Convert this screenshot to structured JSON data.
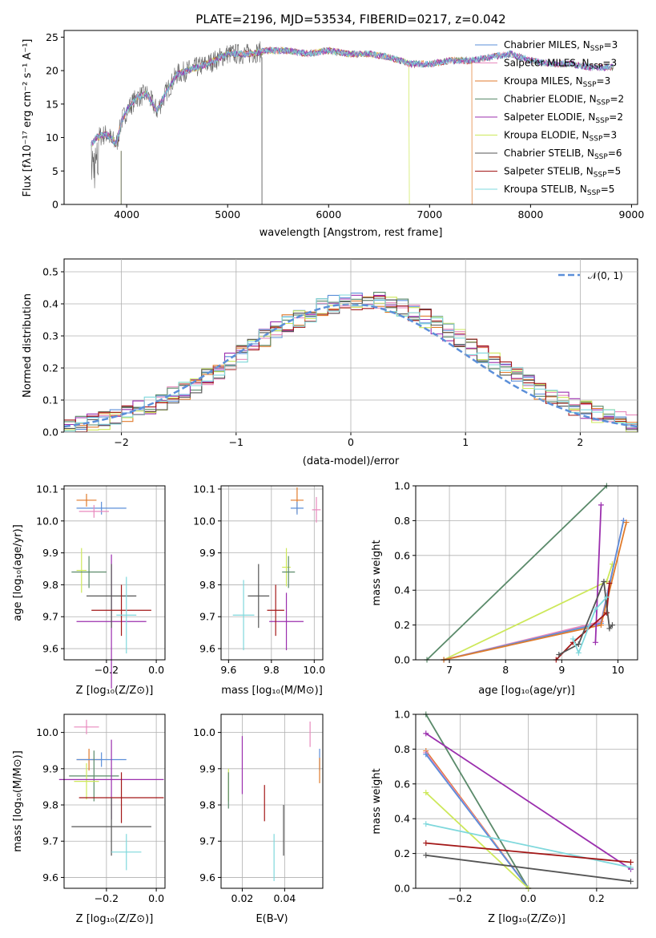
{
  "chart_data": [
    {
      "type": "line",
      "title": "PLATE=2196, MJD=53534, FIBERID=0217, z=0.042",
      "xlabel": "wavelength [Angstrom, rest frame]",
      "ylabel": "Flux [fλ10⁻¹⁷ erg cm⁻² s⁻¹ A⁻¹]",
      "xlim": [
        3380,
        9060
      ],
      "ylim": [
        0,
        26
      ],
      "xticks": [
        4000,
        5000,
        6000,
        7000,
        8000,
        9000
      ],
      "yticks": [
        0,
        5,
        10,
        15,
        20,
        25
      ],
      "legend_loc": "upper right",
      "legend": [
        {
          "label": "Chabrier MILES, N_SSP=3",
          "color": "#5b8fd9"
        },
        {
          "label": "Salpeter MILES, N_SSP=3",
          "color": "#e889bd"
        },
        {
          "label": "Kroupa MILES, N_SSP=3",
          "color": "#e07b2c"
        },
        {
          "label": "Chabrier ELODIE, N_SSP=2",
          "color": "#5a8a6a"
        },
        {
          "label": "Salpeter ELODIE, N_SSP=2",
          "color": "#9b2fae"
        },
        {
          "label": "Kroupa ELODIE, N_SSP=3",
          "color": "#cde85a"
        },
        {
          "label": "Chabrier STELIB, N_SSP=6",
          "color": "#555555"
        },
        {
          "label": "Salpeter STELIB, N_SSP=5",
          "color": "#a31717"
        },
        {
          "label": "Kroupa STELIB, N_SSP=5",
          "color": "#7fd8dc"
        }
      ],
      "spectrum_envelope": {
        "x": [
          3650,
          3700,
          3800,
          3900,
          3950,
          4000,
          4100,
          4200,
          4300,
          4400,
          4500,
          4600,
          4800,
          5000,
          5200,
          5400,
          5600,
          5800,
          6000,
          6200,
          6400,
          6600,
          6800,
          7000,
          7200,
          7400,
          7600,
          7800,
          8000,
          8200,
          8400,
          8600,
          8800
        ],
        "y": [
          9,
          10,
          10.5,
          9,
          12.5,
          14,
          16,
          16.5,
          14,
          17,
          19.5,
          20,
          21,
          22.5,
          22.5,
          23,
          23,
          22.5,
          23,
          22.5,
          22.5,
          22,
          21,
          21,
          21.5,
          21.5,
          22,
          22.5,
          21.5,
          21,
          21,
          20.5,
          20.5
        ]
      },
      "model_cutoffs": [
        {
          "label": "Kroupa ELODIE",
          "x": 6800
        },
        {
          "label": "Kroupa MILES",
          "x": 7420
        },
        {
          "label": "Chabrier STELIB",
          "x": 5340
        }
      ]
    },
    {
      "type": "line",
      "title": "",
      "xlabel": "(data-model)/error",
      "ylabel": "Normed distribution",
      "xlim": [
        -2.5,
        2.5
      ],
      "ylim": [
        0,
        0.54
      ],
      "xticks": [
        -2,
        -1,
        0,
        1,
        2
      ],
      "yticks": [
        0.0,
        0.1,
        0.2,
        0.3,
        0.4,
        0.5
      ],
      "grid": true,
      "legend": [
        {
          "label": "𝒩(0, 1)",
          "color": "#5b8fd9"
        }
      ],
      "legend_loc": "upper right"
    },
    {
      "type": "scatter",
      "xlabel": "Z [log₁₀(Z/Z⊙)]",
      "ylabel": "age  [log₁₀(age/yr)]",
      "xlim": [
        -0.37,
        0.035
      ],
      "ylim": [
        9.565,
        10.11
      ],
      "xticks": [
        -0.2,
        0.0
      ],
      "yticks": [
        9.6,
        9.7,
        9.8,
        9.9,
        10.0,
        10.1
      ],
      "grid": true,
      "points": [
        {
          "series": "Kroupa MILES",
          "x": -0.28,
          "y": 10.065,
          "xerr": 0.04,
          "yerr": 0.02
        },
        {
          "series": "Chabrier MILES",
          "x": -0.22,
          "y": 10.04,
          "xerr": 0.1,
          "yerr": 0.02
        },
        {
          "series": "Salpeter MILES",
          "x": -0.25,
          "y": 10.03,
          "xerr": 0.06,
          "yerr": 0.02
        },
        {
          "series": "Kroupa ELODIE",
          "x": -0.3,
          "y": 9.845,
          "xerr": 0.02,
          "yerr": 0.07
        },
        {
          "series": "Chabrier ELODIE",
          "x": -0.27,
          "y": 9.84,
          "xerr": 0.07,
          "yerr": 0.05
        },
        {
          "series": "Salpeter ELODIE",
          "x": -0.18,
          "y": 9.685,
          "xerr": 0.14,
          "yerr": 0.21
        },
        {
          "series": "Chabrier STELIB",
          "x": -0.18,
          "y": 9.765,
          "xerr": 0.1,
          "yerr": 0.1
        },
        {
          "series": "Salpeter STELIB",
          "x": -0.14,
          "y": 9.72,
          "xerr": 0.12,
          "yerr": 0.08
        },
        {
          "series": "Kroupa STELIB",
          "x": -0.12,
          "y": 9.705,
          "xerr": 0.04,
          "yerr": 0.12
        }
      ]
    },
    {
      "type": "scatter",
      "xlabel": "mass [log₁₀(M/M⊙)]",
      "ylabel": "",
      "xlim": [
        9.565,
        10.04
      ],
      "ylim": [
        9.565,
        10.11
      ],
      "xticks": [
        9.6,
        9.8,
        10.0
      ],
      "yticks": [
        9.6,
        9.7,
        9.8,
        9.9,
        10.0,
        10.1
      ],
      "grid": true,
      "points": [
        {
          "series": "Kroupa MILES",
          "x": 9.92,
          "y": 10.065,
          "xerr": 0.03,
          "yerr": 0.04
        },
        {
          "series": "Chabrier MILES",
          "x": 9.92,
          "y": 10.04,
          "xerr": 0.03,
          "yerr": 0.02
        },
        {
          "series": "Salpeter MILES",
          "x": 10.01,
          "y": 10.035,
          "xerr": 0.02,
          "yerr": 0.04
        },
        {
          "series": "Kroupa ELODIE",
          "x": 9.87,
          "y": 9.855,
          "xerr": 0.02,
          "yerr": 0.06
        },
        {
          "series": "Chabrier ELODIE",
          "x": 9.88,
          "y": 9.84,
          "xerr": 0.03,
          "yerr": 0.05
        },
        {
          "series": "Salpeter ELODIE",
          "x": 9.87,
          "y": 9.685,
          "xerr": 0.08,
          "yerr": 0.09
        },
        {
          "series": "Chabrier STELIB",
          "x": 9.74,
          "y": 9.765,
          "xerr": 0.05,
          "yerr": 0.1
        },
        {
          "series": "Salpeter STELIB",
          "x": 9.82,
          "y": 9.72,
          "xerr": 0.04,
          "yerr": 0.08
        },
        {
          "series": "Kroupa STELIB",
          "x": 9.67,
          "y": 9.705,
          "xerr": 0.05,
          "yerr": 0.11
        }
      ]
    },
    {
      "type": "line",
      "xlabel": "age  [log₁₀(age/yr)]",
      "ylabel": "mass weight",
      "xlim": [
        6.4,
        10.35
      ],
      "ylim": [
        0,
        1.0
      ],
      "xticks": [
        7,
        8,
        9,
        10
      ],
      "yticks": [
        0.0,
        0.2,
        0.4,
        0.6,
        0.8,
        1.0
      ],
      "grid": true,
      "series": [
        {
          "name": "Chabrier ELODIE",
          "points": [
            [
              6.6,
              0.0
            ],
            [
              9.8,
              1.0
            ]
          ]
        },
        {
          "name": "Kroupa ELODIE",
          "points": [
            [
              6.9,
              0.0
            ],
            [
              9.8,
              0.45
            ],
            [
              9.9,
              0.55
            ]
          ]
        },
        {
          "name": "Salpeter MILES",
          "points": [
            [
              6.9,
              0.0
            ],
            [
              9.7,
              0.22
            ],
            [
              10.1,
              0.8
            ]
          ]
        },
        {
          "name": "Chabrier MILES",
          "points": [
            [
              6.9,
              0.0
            ],
            [
              9.7,
              0.21
            ],
            [
              10.1,
              0.8
            ]
          ]
        },
        {
          "name": "Kroupa MILES",
          "points": [
            [
              6.9,
              0.0
            ],
            [
              9.7,
              0.2
            ],
            [
              10.15,
              0.79
            ]
          ]
        },
        {
          "name": "Salpeter ELODIE",
          "points": [
            [
              9.6,
              0.1
            ],
            [
              9.7,
              0.89
            ]
          ]
        },
        {
          "name": "Salpeter STELIB",
          "points": [
            [
              8.9,
              0.0
            ],
            [
              9.2,
              0.1
            ],
            [
              9.8,
              0.27
            ],
            [
              9.85,
              0.44
            ]
          ]
        },
        {
          "name": "Chabrier STELIB",
          "points": [
            [
              8.95,
              0.03
            ],
            [
              9.3,
              0.09
            ],
            [
              9.75,
              0.45
            ],
            [
              9.85,
              0.18
            ],
            [
              9.9,
              0.2
            ]
          ]
        },
        {
          "name": "Kroupa STELIB",
          "points": [
            [
              9.2,
              0.12
            ],
            [
              9.3,
              0.04
            ],
            [
              9.6,
              0.29
            ],
            [
              9.8,
              0.36
            ]
          ]
        }
      ]
    },
    {
      "type": "scatter",
      "xlabel": "Z [log₁₀(Z/Z⊙)]",
      "ylabel": "mass [log₁₀(M/M⊙)]",
      "xlim": [
        -0.37,
        0.035
      ],
      "ylim": [
        9.57,
        10.05
      ],
      "xticks": [
        -0.2,
        0.0
      ],
      "yticks": [
        9.6,
        9.7,
        9.8,
        9.9,
        10.0
      ],
      "grid": true,
      "points": [
        {
          "series": "Salpeter MILES",
          "x": -0.28,
          "y": 10.015,
          "xerr": 0.05,
          "yerr": 0.02
        },
        {
          "series": "Kroupa MILES",
          "x": -0.27,
          "y": 9.925,
          "xerr": 0.05,
          "yerr": 0.03
        },
        {
          "series": "Chabrier MILES",
          "x": -0.22,
          "y": 9.925,
          "xerr": 0.1,
          "yerr": 0.02
        },
        {
          "series": "Chabrier ELODIE",
          "x": -0.25,
          "y": 9.88,
          "xerr": 0.1,
          "yerr": 0.07
        },
        {
          "series": "Kroupa ELODIE",
          "x": -0.28,
          "y": 9.865,
          "xerr": 0.05,
          "yerr": 0.05
        },
        {
          "series": "Salpeter ELODIE",
          "x": -0.18,
          "y": 9.87,
          "xerr": 0.21,
          "yerr": 0.11
        },
        {
          "series": "Salpeter STELIB",
          "x": -0.14,
          "y": 9.82,
          "xerr": 0.17,
          "yerr": 0.07
        },
        {
          "series": "Chabrier STELIB",
          "x": -0.18,
          "y": 9.74,
          "xerr": 0.16,
          "yerr": 0.08
        },
        {
          "series": "Kroupa STELIB",
          "x": -0.12,
          "y": 9.67,
          "xerr": 0.06,
          "yerr": 0.05
        }
      ]
    },
    {
      "type": "scatter",
      "xlabel": "E(B-V)",
      "ylabel": "",
      "xlim": [
        0.01,
        0.058
      ],
      "ylim": [
        9.57,
        10.05
      ],
      "xticks": [
        0.02,
        0.04
      ],
      "yticks": [
        9.6,
        9.7,
        9.8,
        9.9,
        10.0
      ],
      "grid": true,
      "points": [
        {
          "series": "Salpeter MILES",
          "x": 0.052,
          "y": 9.995,
          "yerr": 0.035
        },
        {
          "series": "Chabrier MILES",
          "x": 0.0565,
          "y": 9.925,
          "yerr": 0.03
        },
        {
          "series": "Kroupa MILES",
          "x": 0.0565,
          "y": 9.895,
          "yerr": 0.035
        },
        {
          "series": "Kroupa ELODIE",
          "x": 0.0135,
          "y": 9.855,
          "yerr": 0.045
        },
        {
          "series": "Chabrier ELODIE",
          "x": 0.0135,
          "y": 9.84,
          "yerr": 0.05
        },
        {
          "series": "Salpeter ELODIE",
          "x": 0.02,
          "y": 9.91,
          "yerr": 0.08
        },
        {
          "series": "Salpeter STELIB",
          "x": 0.0305,
          "y": 9.805,
          "yerr": 0.05
        },
        {
          "series": "Chabrier STELIB",
          "x": 0.0395,
          "y": 9.73,
          "yerr": 0.07
        },
        {
          "series": "Kroupa STELIB",
          "x": 0.035,
          "y": 9.655,
          "yerr": 0.065
        }
      ]
    },
    {
      "type": "line",
      "xlabel": "Z [log₁₀(Z/Z⊙)]",
      "ylabel": "mass weight",
      "xlim": [
        -0.33,
        0.32
      ],
      "ylim": [
        0,
        1.0
      ],
      "xticks": [
        -0.2,
        0.0,
        0.2
      ],
      "yticks": [
        0.0,
        0.2,
        0.4,
        0.6,
        0.8,
        1.0
      ],
      "grid": true,
      "series": [
        {
          "name": "Chabrier ELODIE",
          "points": [
            [
              -0.3,
              1.0
            ],
            [
              0.0,
              0.0
            ]
          ]
        },
        {
          "name": "Salpeter ELODIE",
          "points": [
            [
              -0.3,
              0.89
            ],
            [
              0.3,
              0.11
            ]
          ]
        },
        {
          "name": "Kroupa MILES",
          "points": [
            [
              -0.3,
              0.79
            ],
            [
              0.0,
              0.0
            ]
          ]
        },
        {
          "name": "Salpeter MILES",
          "points": [
            [
              -0.3,
              0.78
            ],
            [
              0.0,
              0.0
            ]
          ]
        },
        {
          "name": "Chabrier MILES",
          "points": [
            [
              -0.3,
              0.77
            ],
            [
              0.0,
              0.0
            ]
          ]
        },
        {
          "name": "Kroupa ELODIE",
          "points": [
            [
              -0.3,
              0.55
            ],
            [
              0.0,
              0.0
            ]
          ]
        },
        {
          "name": "Kroupa STELIB",
          "points": [
            [
              -0.3,
              0.37
            ],
            [
              0.3,
              0.12
            ]
          ]
        },
        {
          "name": "Salpeter STELIB",
          "points": [
            [
              -0.3,
              0.26
            ],
            [
              0.3,
              0.15
            ]
          ]
        },
        {
          "name": "Chabrier STELIB",
          "points": [
            [
              -0.3,
              0.19
            ],
            [
              0.3,
              0.04
            ]
          ]
        }
      ]
    }
  ]
}
